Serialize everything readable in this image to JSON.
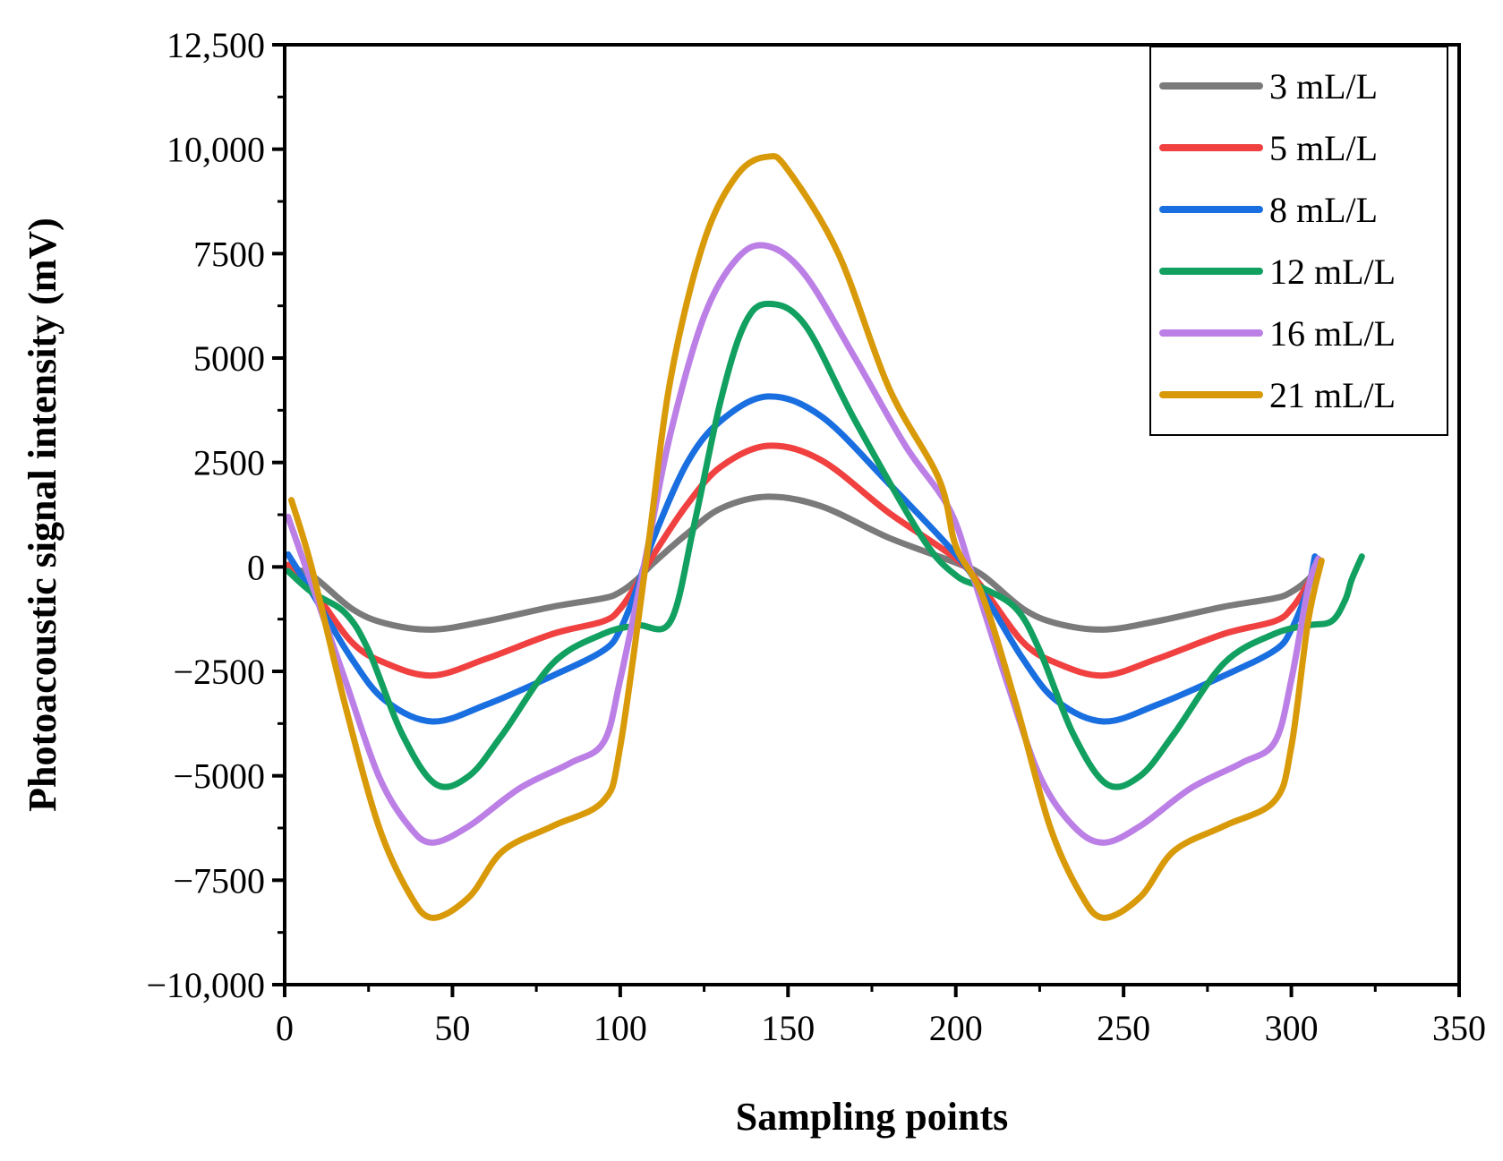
{
  "chart_data": {
    "type": "line",
    "title": "",
    "xlabel": "Sampling points",
    "ylabel": "Photoacoustic signal intensity (mV)",
    "xlim": [
      0,
      350
    ],
    "ylim": [
      -10000,
      12500
    ],
    "x_ticks": [
      0,
      50,
      100,
      150,
      200,
      250,
      300,
      350
    ],
    "x_tick_labels": [
      "0",
      "50",
      "100",
      "150",
      "200",
      "250",
      "300",
      "350"
    ],
    "y_ticks": [
      -10000,
      -7500,
      -5000,
      -2500,
      0,
      2500,
      5000,
      7500,
      10000,
      12500
    ],
    "y_tick_labels": [
      "−10,000",
      "−7500",
      "−5000",
      "−2500",
      "0",
      "2500",
      "5000",
      "7500",
      "10,000",
      "12,500"
    ],
    "grid": false,
    "legend_position": "top-right",
    "series": [
      {
        "name": "3 mL/L",
        "color": "#7a7a7a",
        "x": [
          1,
          8,
          20,
          30,
          44,
          60,
          80,
          95,
          100,
          105,
          110,
          120,
          130,
          144,
          160,
          180,
          200,
          208,
          220,
          230,
          244,
          260,
          280,
          295,
          300,
          305,
          308
        ],
        "y": [
          -50,
          -200,
          -1000,
          -1350,
          -1500,
          -1300,
          -950,
          -750,
          -600,
          -300,
          100,
          800,
          1400,
          1680,
          1450,
          700,
          100,
          -200,
          -1000,
          -1350,
          -1500,
          -1300,
          -950,
          -750,
          -600,
          -300,
          0
        ]
      },
      {
        "name": "5 mL/L",
        "color": "#f04040",
        "x": [
          1,
          8,
          20,
          30,
          44,
          60,
          80,
          95,
          100,
          105,
          110,
          120,
          130,
          144,
          160,
          180,
          200,
          208,
          220,
          230,
          244,
          260,
          280,
          295,
          300,
          305,
          308
        ],
        "y": [
          50,
          -500,
          -1800,
          -2300,
          -2600,
          -2200,
          -1600,
          -1300,
          -1000,
          -400,
          300,
          1500,
          2400,
          2900,
          2550,
          1300,
          200,
          -500,
          -1800,
          -2300,
          -2600,
          -2200,
          -1600,
          -1300,
          -1000,
          -400,
          100
        ]
      },
      {
        "name": "8 mL/L",
        "color": "#1a6fe0",
        "x": [
          1,
          8,
          20,
          30,
          44,
          60,
          80,
          95,
          100,
          105,
          110,
          120,
          130,
          144,
          160,
          180,
          200,
          208,
          220,
          230,
          244,
          260,
          280,
          295,
          300,
          305,
          307
        ],
        "y": [
          300,
          -600,
          -2200,
          -3200,
          -3700,
          -3300,
          -2600,
          -2000,
          -1500,
          -500,
          700,
          2500,
          3500,
          4080,
          3600,
          2000,
          300,
          -600,
          -2200,
          -3200,
          -3700,
          -3300,
          -2600,
          -2000,
          -1500,
          -500,
          250
        ]
      },
      {
        "name": "12 mL/L",
        "color": "#12a060",
        "x": [
          1,
          8,
          18,
          25,
          35,
          45,
          55,
          65,
          80,
          95,
          105,
          115,
          122,
          130,
          137,
          144,
          155,
          170,
          190,
          200,
          208,
          218,
          225,
          235,
          245,
          255,
          265,
          280,
          295,
          305,
          312,
          316,
          318,
          321
        ],
        "y": [
          -100,
          -600,
          -1100,
          -2000,
          -4000,
          -5200,
          -5000,
          -4000,
          -2300,
          -1600,
          -1400,
          -1300,
          1000,
          4000,
          5800,
          6300,
          5800,
          3500,
          700,
          -200,
          -500,
          -1000,
          -2000,
          -4000,
          -5200,
          -5000,
          -4000,
          -2300,
          -1600,
          -1400,
          -1300,
          -800,
          -300,
          250
        ]
      },
      {
        "name": "16 mL/L",
        "color": "#bb7fe6",
        "x": [
          1,
          8,
          18,
          28,
          37,
          44,
          55,
          70,
          85,
          95,
          100,
          108,
          115,
          125,
          135,
          144,
          155,
          170,
          185,
          198,
          205,
          215,
          225,
          235,
          244,
          255,
          270,
          285,
          295,
          300,
          305,
          308
        ],
        "y": [
          1200,
          -400,
          -2700,
          -5000,
          -6200,
          -6600,
          -6200,
          -5300,
          -4700,
          -4200,
          -2700,
          400,
          3200,
          6000,
          7400,
          7680,
          7000,
          5000,
          2900,
          1400,
          -200,
          -2700,
          -5000,
          -6200,
          -6600,
          -6200,
          -5300,
          -4700,
          -4200,
          -2700,
          -500,
          200
        ]
      },
      {
        "name": "21 mL/L",
        "color": "#d99a0a",
        "x": [
          2,
          8,
          18,
          28,
          37,
          44,
          55,
          65,
          80,
          95,
          100,
          108,
          115,
          125,
          135,
          144,
          150,
          165,
          180,
          195,
          200,
          208,
          218,
          228,
          237,
          244,
          255,
          265,
          280,
          295,
          300,
          305,
          309
        ],
        "y": [
          1600,
          0,
          -3300,
          -6200,
          -7800,
          -8400,
          -7900,
          -6800,
          -6200,
          -5600,
          -4300,
          300,
          4500,
          7800,
          9400,
          9820,
          9500,
          7500,
          4300,
          2100,
          500,
          -700,
          -3300,
          -6200,
          -7800,
          -8400,
          -7900,
          -6800,
          -6200,
          -5600,
          -4300,
          -1300,
          150
        ]
      }
    ]
  }
}
